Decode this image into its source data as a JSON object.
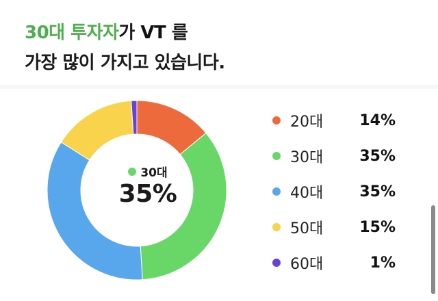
{
  "headline": {
    "line1_accent": "30대 투자자",
    "line1_normal": "가 ",
    "line1_strong": "VT",
    "line1_tail": " 를",
    "line2": "가장 많이 가지고 있습니다."
  },
  "center": {
    "category": "30대",
    "value": "35%"
  },
  "chart_data": {
    "type": "pie",
    "categories": [
      "20대",
      "30대",
      "40대",
      "50대",
      "60대"
    ],
    "values": [
      14,
      35,
      35,
      15,
      1
    ],
    "value_labels": [
      "14%",
      "35%",
      "35%",
      "15%",
      "1%"
    ],
    "colors": [
      "#ec6a3b",
      "#69d768",
      "#58a6ec",
      "#f8d34b",
      "#6941d8"
    ],
    "donut": true,
    "highlight": "30대",
    "legend_position": "right"
  },
  "legend": [
    {
      "label": "20대",
      "value": "14%",
      "color": "#ec6a3b"
    },
    {
      "label": "30대",
      "value": "35%",
      "color": "#69d768"
    },
    {
      "label": "40대",
      "value": "35%",
      "color": "#58a6ec"
    },
    {
      "label": "50대",
      "value": "15%",
      "color": "#f8d34b"
    },
    {
      "label": "60대",
      "value": "1%",
      "color": "#6941d8"
    }
  ],
  "highlight_color": "#69d768"
}
